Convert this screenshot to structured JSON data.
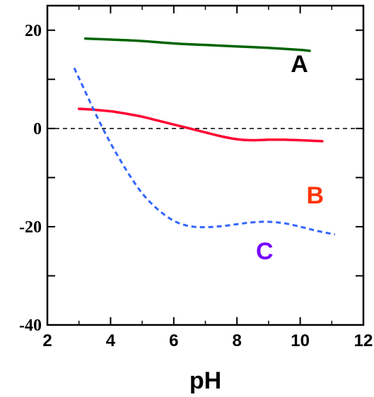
{
  "chart_data": {
    "type": "line",
    "xlabel": "pH",
    "ylabel": "",
    "xlim": [
      2,
      12
    ],
    "ylim": [
      -40,
      25
    ],
    "xticks": [
      2,
      4,
      6,
      8,
      10,
      12
    ],
    "xtick_labels": [
      "2",
      "4",
      "6",
      "8",
      "10",
      "12"
    ],
    "yticks": [
      -40,
      -20,
      0,
      20
    ],
    "ytick_labels": [
      "-40",
      "-20",
      "0",
      "20"
    ],
    "reference_line": {
      "y": 0,
      "style": "dashed",
      "color": "#000000"
    },
    "series": [
      {
        "name": "A",
        "color": "#006400",
        "style": "solid",
        "label_at": [
          9.7,
          11.5
        ],
        "x": [
          3.2,
          4,
          5,
          6,
          7,
          8,
          9,
          10,
          10.3
        ],
        "y": [
          18.3,
          18.1,
          17.8,
          17.3,
          17.0,
          16.7,
          16.4,
          16.0,
          15.8
        ]
      },
      {
        "name": "B",
        "color": "#ff0033",
        "label_color": "#ff3300",
        "style": "solid",
        "label_at": [
          10.2,
          -15.3
        ],
        "x": [
          3.0,
          3.5,
          4,
          4.5,
          5,
          5.5,
          6,
          6.5,
          7,
          7.5,
          8,
          8.5,
          9,
          9.5,
          10,
          10.7
        ],
        "y": [
          4.0,
          3.8,
          3.5,
          3.0,
          2.4,
          1.6,
          0.8,
          0.0,
          -0.8,
          -1.6,
          -2.2,
          -2.4,
          -2.3,
          -2.3,
          -2.4,
          -2.6
        ]
      },
      {
        "name": "C",
        "color": "#3366ff",
        "label_color": "#7700ff",
        "style": "dashed",
        "label_at": [
          8.6,
          -26.6
        ],
        "x": [
          2.85,
          3.2,
          3.6,
          4.0,
          4.5,
          5.0,
          5.5,
          6.0,
          6.5,
          7.0,
          7.5,
          8.0,
          8.5,
          9.0,
          9.5,
          10.0,
          10.5,
          11.1
        ],
        "y": [
          12.3,
          7.5,
          2.0,
          -3.0,
          -8.5,
          -13.2,
          -16.5,
          -18.8,
          -19.9,
          -20.1,
          -19.9,
          -19.5,
          -19.1,
          -19.0,
          -19.3,
          -20.0,
          -20.8,
          -21.6
        ]
      }
    ]
  }
}
